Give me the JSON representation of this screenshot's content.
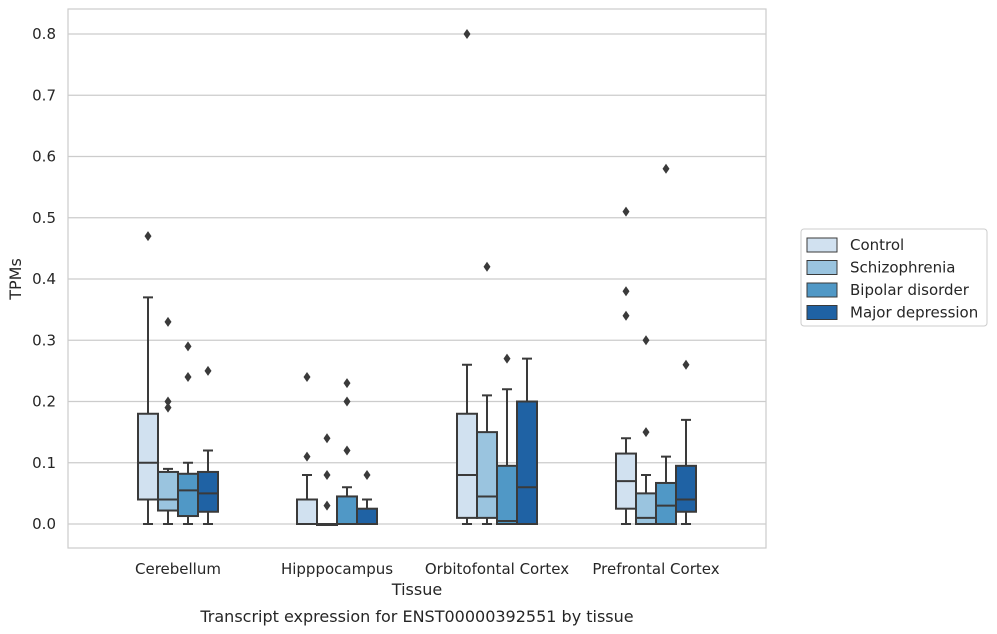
{
  "caption": "Transcript expression for ENST00000392551 by tissue",
  "chart_data": {
    "type": "box",
    "xlabel": "Tissue",
    "ylabel": "TPMs",
    "ylim": [
      -0.04,
      0.84
    ],
    "yticks": [
      0.0,
      0.1,
      0.2,
      0.3,
      0.4,
      0.5,
      0.6,
      0.7,
      0.8
    ],
    "ytick_labels": [
      "0.0",
      "0.1",
      "0.2",
      "0.3",
      "0.4",
      "0.5",
      "0.6",
      "0.7",
      "0.8"
    ],
    "grid": "horizontal",
    "legend_position": "right",
    "categories": [
      "Cerebellum",
      "Hipppocampus",
      "Orbitofontal Cortex",
      "Prefrontal Cortex"
    ],
    "series": [
      {
        "name": "Control",
        "color": "#d1e1f0",
        "boxes": [
          {
            "min": 0.0,
            "q1": 0.04,
            "median": 0.1,
            "q3": 0.18,
            "max": 0.37,
            "outliers": [
              0.47
            ]
          },
          {
            "min": 0.0,
            "q1": 0.0,
            "median": 0.0,
            "q3": 0.04,
            "max": 0.08,
            "outliers": [
              0.11,
              0.24
            ]
          },
          {
            "min": 0.0,
            "q1": 0.01,
            "median": 0.08,
            "q3": 0.18,
            "max": 0.26,
            "outliers": [
              0.8
            ]
          },
          {
            "min": 0.0,
            "q1": 0.025,
            "median": 0.07,
            "q3": 0.115,
            "max": 0.14,
            "outliers": [
              0.34,
              0.38,
              0.51
            ]
          }
        ]
      },
      {
        "name": "Schizophrenia",
        "color": "#9ac4df",
        "boxes": [
          {
            "min": 0.0,
            "q1": 0.022,
            "median": 0.04,
            "q3": 0.085,
            "max": 0.09,
            "outliers": [
              0.19,
              0.2,
              0.33
            ]
          },
          {
            "min": 0.0,
            "q1": 0.0,
            "median": 0.0,
            "q3": 0.0,
            "max": 0.0,
            "outliers": [
              0.03,
              0.08,
              0.14
            ]
          },
          {
            "min": 0.0,
            "q1": 0.01,
            "median": 0.045,
            "q3": 0.15,
            "max": 0.21,
            "outliers": [
              0.42
            ]
          },
          {
            "min": 0.0,
            "q1": 0.0,
            "median": 0.01,
            "q3": 0.05,
            "max": 0.08,
            "outliers": [
              0.15,
              0.3
            ]
          }
        ]
      },
      {
        "name": "Bipolar disorder",
        "color": "#5098c6",
        "boxes": [
          {
            "min": 0.0,
            "q1": 0.013,
            "median": 0.055,
            "q3": 0.082,
            "max": 0.1,
            "outliers": [
              0.24,
              0.29
            ]
          },
          {
            "min": 0.0,
            "q1": 0.0,
            "median": 0.0,
            "q3": 0.045,
            "max": 0.06,
            "outliers": [
              0.12,
              0.2,
              0.23
            ]
          },
          {
            "min": 0.0,
            "q1": 0.0,
            "median": 0.005,
            "q3": 0.095,
            "max": 0.22,
            "outliers": [
              0.27
            ]
          },
          {
            "min": 0.0,
            "q1": 0.0,
            "median": 0.03,
            "q3": 0.067,
            "max": 0.11,
            "outliers": [
              0.58
            ]
          }
        ]
      },
      {
        "name": "Major depression",
        "color": "#1f62a4",
        "boxes": [
          {
            "min": 0.0,
            "q1": 0.02,
            "median": 0.05,
            "q3": 0.085,
            "max": 0.12,
            "outliers": [
              0.25
            ]
          },
          {
            "min": 0.0,
            "q1": 0.0,
            "median": 0.0,
            "q3": 0.025,
            "max": 0.04,
            "outliers": [
              0.08
            ]
          },
          {
            "min": 0.0,
            "q1": 0.0,
            "median": 0.06,
            "q3": 0.2,
            "max": 0.27,
            "outliers": []
          },
          {
            "min": 0.0,
            "q1": 0.02,
            "median": 0.04,
            "q3": 0.095,
            "max": 0.17,
            "outliers": [
              0.26
            ]
          }
        ]
      }
    ]
  }
}
